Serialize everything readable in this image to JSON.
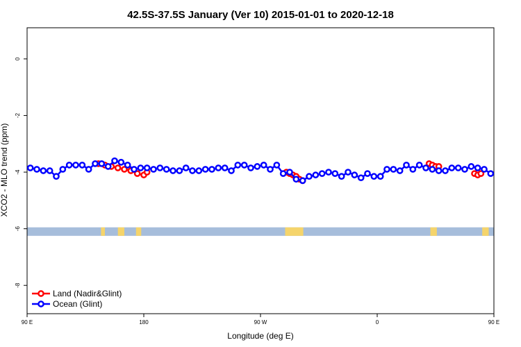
{
  "chart_data": {
    "type": "line",
    "title": "42.5S-37.5S January (Ver 10)   2015-01-01 to 2020-12-18",
    "xlabel": "Longitude (deg E)",
    "ylabel": "XCO2 - MLO trend (ppm)",
    "xlim": [
      90,
      450
    ],
    "ylim": [
      -9,
      1.1
    ],
    "x_ticks": [
      {
        "value": 90,
        "label": "90 E"
      },
      {
        "value": 180,
        "label": "180"
      },
      {
        "value": 270,
        "label": "90 W"
      },
      {
        "value": 360,
        "label": "0"
      },
      {
        "value": 450,
        "label": "90 E"
      },
      {
        "value": 540,
        "label": "180"
      }
    ],
    "y_ticks": [
      {
        "value": 0,
        "label": "0"
      },
      {
        "value": -2,
        "label": "-2"
      },
      {
        "value": -4,
        "label": "-4"
      },
      {
        "value": -6,
        "label": "-6"
      },
      {
        "value": -8,
        "label": "-8"
      }
    ],
    "grid": false,
    "legend_position": "bottom-left",
    "series": [
      {
        "name": "Land (Nadir&Glint)",
        "color": "#ff0000",
        "segments": [
          {
            "x": [
              145,
              150,
              155,
              160,
              165,
              170,
              175,
              180,
              182.5
            ],
            "y": [
              -3.7,
              -3.75,
              -3.8,
              -3.85,
              -3.9,
              -3.95,
              -4.05,
              -4.1,
              -4.0
            ]
          },
          {
            "x": [
              290,
              292.5,
              295,
              297.5,
              300,
              302.5
            ],
            "y": [
              -4.0,
              -4.05,
              -4.1,
              -4.15,
              -4.25,
              -4.3
            ]
          },
          {
            "x": [
              400,
              402.5,
              405,
              407.5
            ],
            "y": [
              -3.7,
              -3.75,
              -3.8,
              -3.8
            ]
          },
          {
            "x": [
              435,
              437.5,
              440
            ],
            "y": [
              -4.05,
              -4.1,
              -4.05
            ]
          }
        ]
      },
      {
        "name": "Ocean (Glint)",
        "color": "#0000ff",
        "x": [
          92.5,
          97.5,
          102.5,
          107.5,
          112.5,
          117.5,
          122.5,
          127.5,
          132.5,
          137.5,
          142.5,
          147.5,
          152.5,
          157.5,
          162.5,
          167.5,
          172.5,
          177.5,
          182.5,
          187.5,
          192.5,
          197.5,
          202.5,
          207.5,
          212.5,
          217.5,
          222.5,
          227.5,
          232.5,
          237.5,
          242.5,
          247.5,
          252.5,
          257.5,
          262.5,
          267.5,
          272.5,
          277.5,
          282.5,
          287.5,
          292.5,
          297.5,
          302.5,
          307.5,
          312.5,
          317.5,
          322.5,
          327.5,
          332.5,
          337.5,
          342.5,
          347.5,
          352.5,
          357.5,
          362.5,
          367.5,
          372.5,
          377.5,
          382.5,
          387.5,
          392.5,
          397.5,
          402.5,
          407.5,
          412.5,
          417.5,
          422.5,
          427.5,
          432.5,
          437.5,
          442.5,
          447.5
        ],
        "y": [
          -3.85,
          -3.9,
          -3.95,
          -3.95,
          -4.15,
          -3.9,
          -3.75,
          -3.75,
          -3.75,
          -3.9,
          -3.7,
          -3.7,
          -3.8,
          -3.6,
          -3.65,
          -3.75,
          -3.9,
          -3.85,
          -3.85,
          -3.9,
          -3.85,
          -3.9,
          -3.95,
          -3.95,
          -3.85,
          -3.95,
          -3.95,
          -3.9,
          -3.9,
          -3.85,
          -3.85,
          -3.95,
          -3.75,
          -3.75,
          -3.85,
          -3.8,
          -3.75,
          -3.9,
          -3.75,
          -4.05,
          -4.0,
          -4.25,
          -4.3,
          -4.15,
          -4.1,
          -4.05,
          -4.0,
          -4.05,
          -4.15,
          -4.0,
          -4.1,
          -4.2,
          -4.05,
          -4.15,
          -4.15,
          -3.9,
          -3.9,
          -3.95,
          -3.75,
          -3.9,
          -3.75,
          -3.85,
          -3.9,
          -3.95,
          -3.95,
          -3.85,
          -3.85,
          -3.9,
          -3.8,
          -3.85,
          -3.9,
          -4.05
        ]
      }
    ],
    "land_mask": {
      "y_range": [
        -6.25,
        -5.95
      ],
      "ocean_color": "#a6bddb",
      "land_color": "#f5d46b",
      "land_spans": [
        [
          147,
          150
        ],
        [
          160,
          165
        ],
        [
          174,
          178
        ],
        [
          289,
          303
        ],
        [
          401,
          406
        ],
        [
          441,
          446
        ]
      ]
    }
  }
}
